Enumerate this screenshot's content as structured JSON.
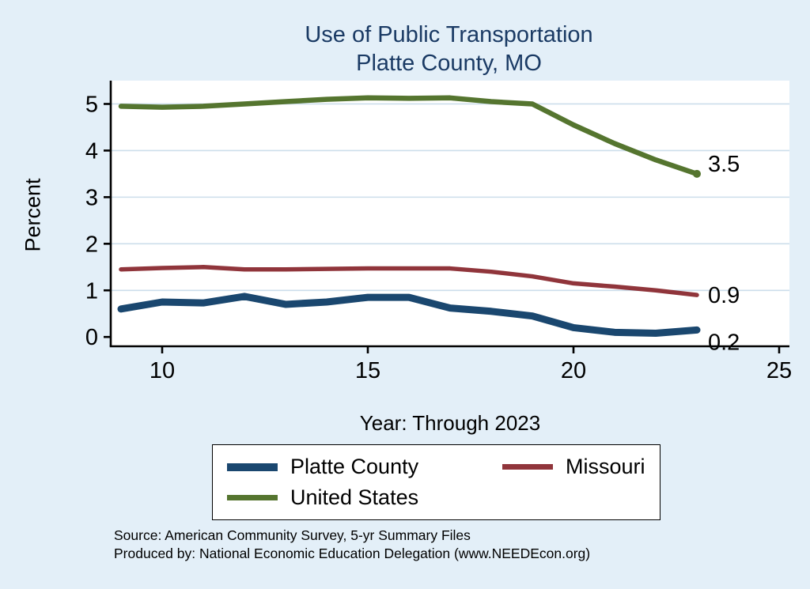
{
  "colors": {
    "background": "#E3EFF8",
    "plot_bg": "#FFFFFF",
    "grid": "#CCDEEB",
    "axis": "#000000",
    "title": "#1A3A64"
  },
  "source": {
    "line1": "Source: American Community Survey, 5-yr Summary Files",
    "line2": "Produced by: National Economic Education Delegation (www.NEEDEcon.org)"
  },
  "chart_data": {
    "type": "line",
    "title": "Use of Public Transportation",
    "subtitle": "Platte County, MO",
    "ylabel": "Percent",
    "xlabel": "Year: Through 2023",
    "grid": true,
    "legend_position": "bottom",
    "x_ticks": [
      10,
      15,
      20,
      25
    ],
    "y_ticks": [
      0,
      1,
      2,
      3,
      4,
      5
    ],
    "xlim": [
      8.75,
      25.25
    ],
    "ylim": [
      -0.2,
      5.5
    ],
    "x": [
      9,
      10,
      11,
      12,
      13,
      14,
      15,
      16,
      17,
      18,
      19,
      20,
      21,
      22,
      23
    ],
    "series": [
      {
        "name": "Platte County",
        "color": "#1A476F",
        "values": [
          0.6,
          0.75,
          0.73,
          0.87,
          0.7,
          0.75,
          0.85,
          0.85,
          0.62,
          0.55,
          0.45,
          0.2,
          0.1,
          0.08,
          0.15
        ],
        "end_label": "0.2"
      },
      {
        "name": "Missouri",
        "color": "#90353B",
        "values": [
          1.45,
          1.48,
          1.5,
          1.45,
          1.45,
          1.46,
          1.47,
          1.47,
          1.47,
          1.4,
          1.3,
          1.15,
          1.08,
          1.0,
          0.9
        ],
        "end_label": "0.9"
      },
      {
        "name": "United States",
        "color": "#55752F",
        "values": [
          4.95,
          4.93,
          4.95,
          5.0,
          5.05,
          5.1,
          5.13,
          5.12,
          5.13,
          5.05,
          5.0,
          4.55,
          4.15,
          3.8,
          3.5
        ],
        "end_label": "3.5"
      }
    ]
  }
}
